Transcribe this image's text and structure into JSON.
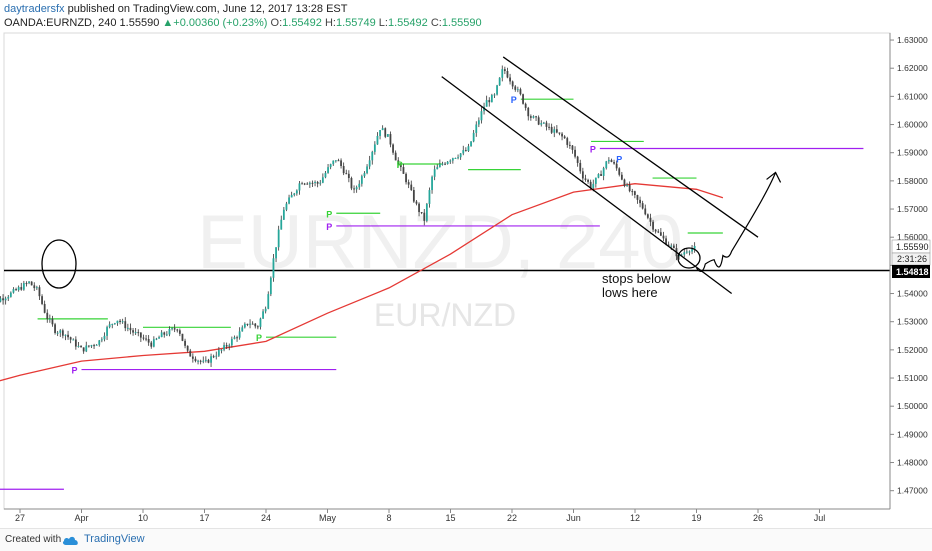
{
  "header": {
    "author": "daytradersfx",
    "published": "published on TradingView.com, June 12, 2017 13:28 EST",
    "symbol": "OANDA:EURNZD, 240",
    "last": "1.55590",
    "change_arrow": "▲",
    "change": "+0.00360 (+0.23%)",
    "o_label": "O:",
    "o_value": "1.55492",
    "h_label": "H:",
    "h_value": "1.55749",
    "l_label": "L:",
    "l_value": "1.55492",
    "c_label": "C:",
    "c_value": "1.55590"
  },
  "watermark": {
    "big": "EURNZD, 240",
    "small": "EUR/NZD"
  },
  "footer": {
    "created": "Created with",
    "brand": "TradingView"
  },
  "annotation": {
    "line1": "stops below",
    "line2": "lows here"
  },
  "price_tags": {
    "current_price": "1.55590",
    "countdown": "2:31:26",
    "support_price": "1.54818"
  },
  "pivot_marker": "P",
  "colors": {
    "candle_up": "#26a69a",
    "candle_down": "#444444",
    "ma_line": "#e53935",
    "green_level": "#37d337",
    "blue_level": "#2962ff",
    "purple_level": "#a020f0",
    "drawing": "#000000"
  },
  "chart_data": {
    "type": "candlestick",
    "symbol": "OANDA:EURNZD",
    "timeframe": "240",
    "ylim": [
      1.4635,
      1.6325
    ],
    "y_ticks": [
      "1.63000",
      "1.62000",
      "1.61000",
      "1.60000",
      "1.59000",
      "1.58000",
      "1.57000",
      "1.56000",
      "1.55000",
      "1.54000",
      "1.53000",
      "1.52000",
      "1.51000",
      "1.50000",
      "1.49000",
      "1.48000",
      "1.47000"
    ],
    "x_ticks": [
      "27",
      "Apr",
      "10",
      "17",
      "24",
      "May",
      "8",
      "15",
      "22",
      "Jun",
      "12",
      "19",
      "26",
      "Jul"
    ],
    "price_path": [
      [
        "2017-03-23",
        1.533
      ],
      [
        "2017-03-24",
        1.537
      ],
      [
        "2017-03-26",
        1.54
      ],
      [
        "2017-03-28",
        1.544
      ],
      [
        "2017-03-29",
        1.541
      ],
      [
        "2017-03-30",
        1.532
      ],
      [
        "2017-03-31",
        1.527
      ],
      [
        "2017-04-01",
        1.526
      ],
      [
        "2017-04-03",
        1.52
      ],
      [
        "2017-04-05",
        1.523
      ],
      [
        "2017-04-06",
        1.528
      ],
      [
        "2017-04-07",
        1.531
      ],
      [
        "2017-04-09",
        1.526
      ],
      [
        "2017-04-11",
        1.522
      ],
      [
        "2017-04-12",
        1.525
      ],
      [
        "2017-04-14",
        1.528
      ],
      [
        "2017-04-15",
        1.519
      ],
      [
        "2017-04-17",
        1.515
      ],
      [
        "2017-04-18",
        1.518
      ],
      [
        "2017-04-19",
        1.52
      ],
      [
        "2017-04-21",
        1.526
      ],
      [
        "2017-04-22",
        1.53
      ],
      [
        "2017-04-23",
        1.528
      ],
      [
        "2017-04-24",
        1.536
      ],
      [
        "2017-04-25",
        1.555
      ],
      [
        "2017-04-26",
        1.57
      ],
      [
        "2017-04-28",
        1.58
      ],
      [
        "2017-04-30",
        1.579
      ],
      [
        "2017-05-01",
        1.584
      ],
      [
        "2017-05-02",
        1.588
      ],
      [
        "2017-05-03",
        1.583
      ],
      [
        "2017-05-04",
        1.576
      ],
      [
        "2017-05-05",
        1.582
      ],
      [
        "2017-05-06",
        1.59
      ],
      [
        "2017-05-07",
        1.599
      ],
      [
        "2017-05-08",
        1.595
      ],
      [
        "2017-05-09",
        1.586
      ],
      [
        "2017-05-10",
        1.58
      ],
      [
        "2017-05-11",
        1.572
      ],
      [
        "2017-05-12",
        1.566
      ],
      [
        "2017-05-13",
        1.583
      ],
      [
        "2017-05-14",
        1.586
      ],
      [
        "2017-05-15",
        1.588
      ],
      [
        "2017-05-17",
        1.591
      ],
      [
        "2017-05-18",
        1.6
      ],
      [
        "2017-05-19",
        1.608
      ],
      [
        "2017-05-20",
        1.61
      ],
      [
        "2017-05-21",
        1.62
      ],
      [
        "2017-05-22",
        1.615
      ],
      [
        "2017-05-23",
        1.61
      ],
      [
        "2017-05-24",
        1.603
      ],
      [
        "2017-05-26",
        1.599
      ],
      [
        "2017-05-27",
        1.597
      ],
      [
        "2017-05-28",
        1.595
      ],
      [
        "2017-05-29",
        1.59
      ],
      [
        "2017-05-30",
        1.582
      ],
      [
        "2017-05-31",
        1.578
      ],
      [
        "2017-06-01",
        1.582
      ],
      [
        "2017-06-02",
        1.588
      ],
      [
        "2017-06-03",
        1.584
      ],
      [
        "2017-06-04",
        1.578
      ],
      [
        "2017-06-05",
        1.574
      ],
      [
        "2017-06-06",
        1.57
      ],
      [
        "2017-06-07",
        1.564
      ],
      [
        "2017-06-08",
        1.56
      ],
      [
        "2017-06-09",
        1.557
      ],
      [
        "2017-06-10",
        1.553
      ],
      [
        "2017-06-11",
        1.556
      ],
      [
        "2017-06-12",
        1.5559
      ]
    ],
    "series": [
      {
        "name": "MA",
        "color": "#e53935",
        "points": [
          [
            "2017-03-20",
            1.505
          ],
          [
            "2017-03-27",
            1.511
          ],
          [
            "2017-04-03",
            1.516
          ],
          [
            "2017-04-10",
            1.518
          ],
          [
            "2017-04-17",
            1.5195
          ],
          [
            "2017-04-24",
            1.523
          ],
          [
            "2017-05-01",
            1.533
          ],
          [
            "2017-05-08",
            1.542
          ],
          [
            "2017-05-15",
            1.554
          ],
          [
            "2017-05-22",
            1.568
          ],
          [
            "2017-05-29",
            1.576
          ],
          [
            "2017-06-05",
            1.579
          ],
          [
            "2017-06-12",
            1.577
          ],
          [
            "2017-06-15",
            1.574
          ]
        ]
      }
    ],
    "levels": [
      {
        "type": "support",
        "price": 1.54818,
        "start": "2017-03-20",
        "end": "2017-07-05",
        "color": "#000000"
      },
      {
        "type": "purple",
        "price": 1.513,
        "start": "2017-04-03",
        "end": "2017-05-02",
        "color": "#a020f0"
      },
      {
        "type": "purple",
        "price": 1.564,
        "start": "2017-05-02",
        "end": "2017-06-01",
        "color": "#a020f0"
      },
      {
        "type": "purple",
        "price": 1.5915,
        "start": "2017-06-01",
        "end": "2017-07-01",
        "color": "#a020f0"
      },
      {
        "type": "purple",
        "price": 1.4705,
        "start": "2017-03-20",
        "end": "2017-04-01",
        "color": "#a020f0"
      },
      {
        "type": "green",
        "price": 1.531,
        "start": "2017-03-29",
        "end": "2017-04-06",
        "color": "#37d337"
      },
      {
        "type": "green",
        "price": 1.528,
        "start": "2017-04-10",
        "end": "2017-04-20",
        "color": "#37d337"
      },
      {
        "type": "green",
        "price": 1.5245,
        "start": "2017-04-24",
        "end": "2017-05-02",
        "color": "#37d337"
      },
      {
        "type": "green",
        "price": 1.5685,
        "start": "2017-05-02",
        "end": "2017-05-07",
        "color": "#37d337"
      },
      {
        "type": "green",
        "price": 1.586,
        "start": "2017-05-09",
        "end": "2017-05-14",
        "color": "#37d337"
      },
      {
        "type": "green",
        "price": 1.584,
        "start": "2017-05-17",
        "end": "2017-05-23",
        "color": "#37d337"
      },
      {
        "type": "green",
        "price": 1.609,
        "start": "2017-05-23",
        "end": "2017-05-29",
        "color": "#37d337"
      },
      {
        "type": "green",
        "price": 1.594,
        "start": "2017-05-31",
        "end": "2017-06-06",
        "color": "#37d337"
      },
      {
        "type": "green",
        "price": 1.581,
        "start": "2017-06-07",
        "end": "2017-06-12",
        "color": "#37d337"
      },
      {
        "type": "green",
        "price": 1.5615,
        "start": "2017-06-11",
        "end": "2017-06-15",
        "color": "#37d337"
      }
    ],
    "pivot_labels": [
      {
        "date": "2017-04-03",
        "price": 1.513,
        "color": "#a020f0"
      },
      {
        "date": "2017-05-02",
        "price": 1.564,
        "color": "#a020f0"
      },
      {
        "date": "2017-06-01",
        "price": 1.5915,
        "color": "#a020f0"
      },
      {
        "date": "2017-05-02",
        "price": 1.5685,
        "color": "#37d337"
      },
      {
        "date": "2017-05-10",
        "price": 1.586,
        "color": "#37d337"
      },
      {
        "date": "2017-04-24",
        "price": 1.5245,
        "color": "#37d337"
      },
      {
        "date": "2017-05-23",
        "price": 1.609,
        "color": "#2962ff"
      },
      {
        "date": "2017-06-04",
        "price": 1.588,
        "color": "#2962ff"
      }
    ],
    "channel": {
      "upper": [
        [
          "2017-05-14",
          1.617
        ],
        [
          "2017-06-16",
          1.54
        ]
      ],
      "lower": [
        [
          "2017-05-21",
          1.624
        ],
        [
          "2017-06-19",
          1.56
        ]
      ]
    },
    "drawn_projection": [
      [
        "2017-06-12",
        1.549
      ],
      [
        "2017-06-16",
        1.555
      ],
      [
        "2017-06-21",
        1.583
      ]
    ]
  }
}
